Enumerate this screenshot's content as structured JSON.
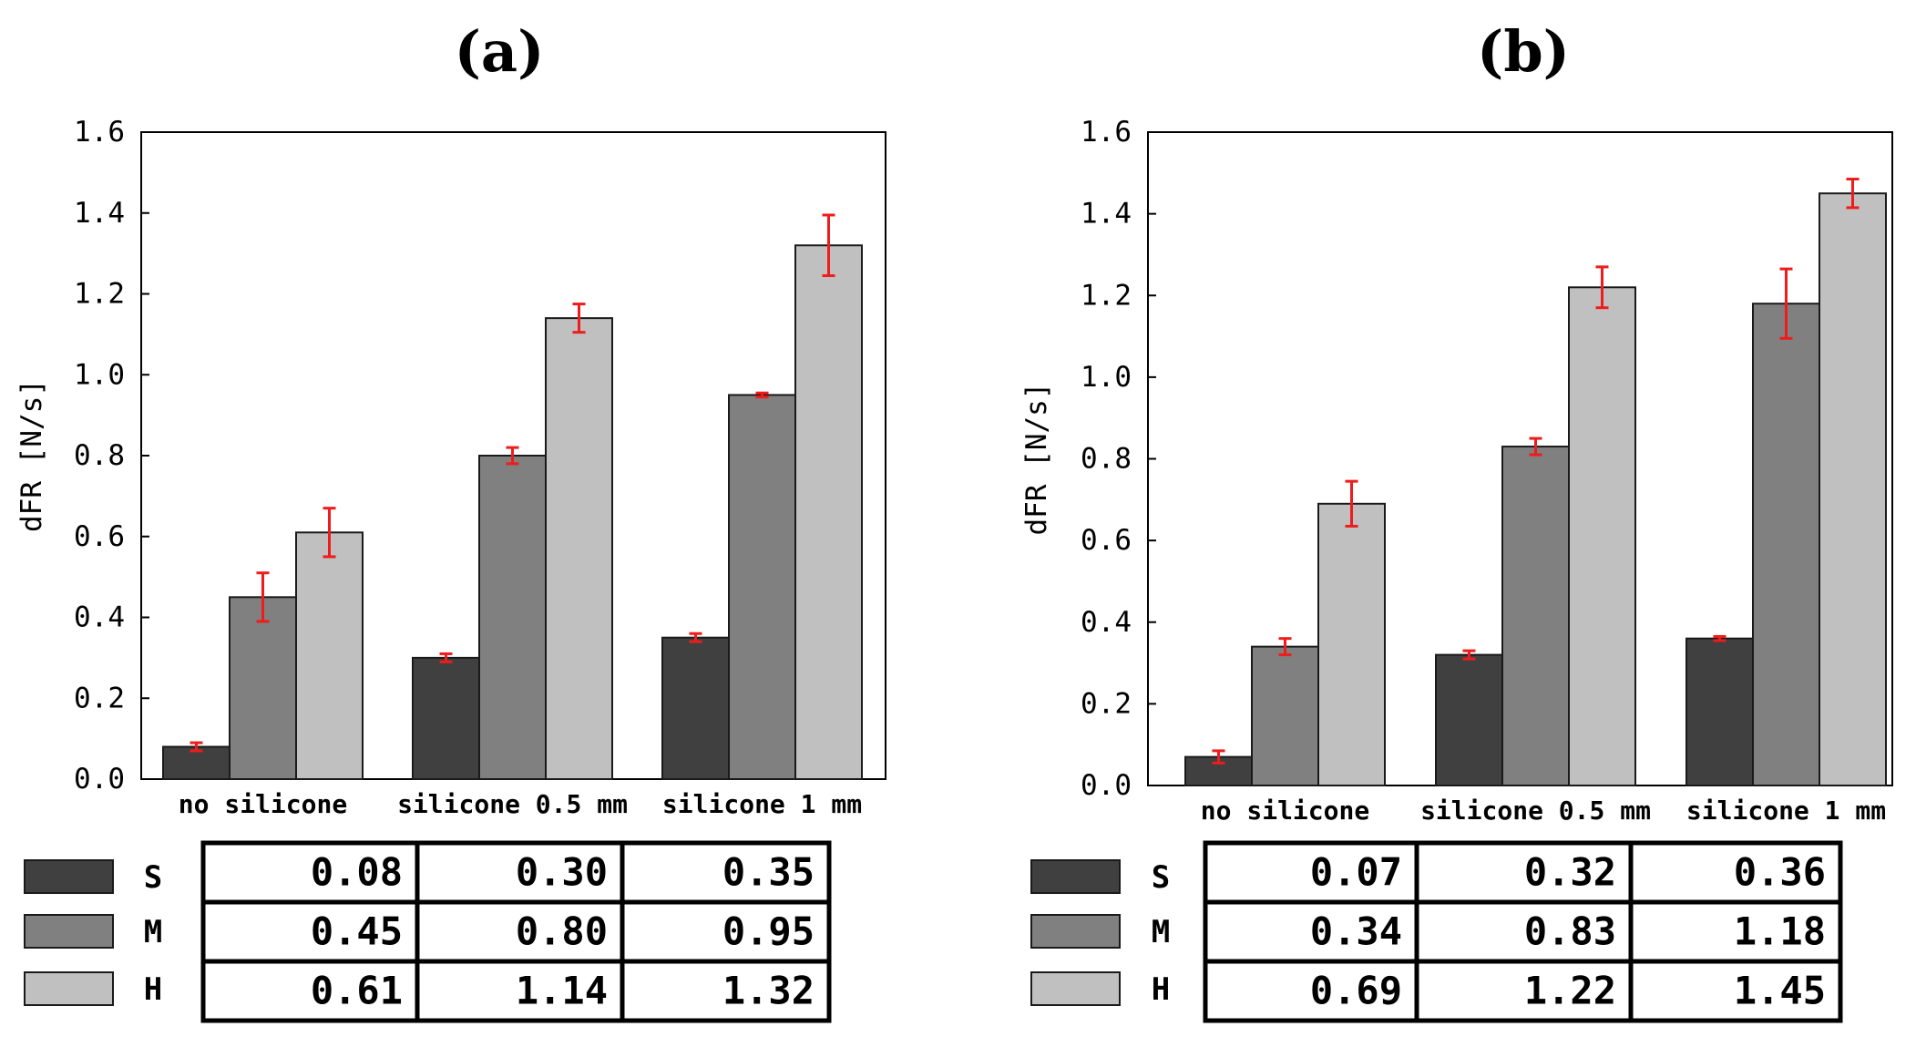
{
  "colors": {
    "S": "#404040",
    "M": "#808080",
    "H": "#c0c0c0",
    "error": "#ee1c1c",
    "frame": "#000000"
  },
  "chart_data": [
    {
      "type": "bar",
      "title": "(a)",
      "xlabel": "",
      "ylabel": "dFR [N/s]",
      "ylim": [
        0,
        1.6
      ],
      "yticks": [
        "0.0",
        "0.2",
        "0.4",
        "0.6",
        "0.8",
        "1.0",
        "1.2",
        "1.4",
        "1.6"
      ],
      "categories": [
        "no silicone",
        "silicone 0.5 mm",
        "silicone 1 mm"
      ],
      "series": [
        {
          "name": "S",
          "values": [
            0.08,
            0.3,
            0.35
          ],
          "errors": [
            0.01,
            0.01,
            0.01
          ]
        },
        {
          "name": "M",
          "values": [
            0.45,
            0.8,
            0.95
          ],
          "errors": [
            0.06,
            0.02,
            0.005
          ]
        },
        {
          "name": "H",
          "values": [
            0.61,
            1.14,
            1.32
          ],
          "errors": [
            0.06,
            0.035,
            0.075
          ]
        }
      ],
      "table": [
        [
          "0.08",
          "0.30",
          "0.35"
        ],
        [
          "0.45",
          "0.80",
          "0.95"
        ],
        [
          "0.61",
          "1.14",
          "1.32"
        ]
      ]
    },
    {
      "type": "bar",
      "title": "(b)",
      "xlabel": "",
      "ylabel": "dFR [N/s]",
      "ylim": [
        0,
        1.6
      ],
      "yticks": [
        "0.0",
        "0.2",
        "0.4",
        "0.6",
        "0.8",
        "1.0",
        "1.2",
        "1.4",
        "1.6"
      ],
      "categories": [
        "no silicone",
        "silicone 0.5 mm",
        "silicone 1 mm"
      ],
      "series": [
        {
          "name": "S",
          "values": [
            0.07,
            0.32,
            0.36
          ],
          "errors": [
            0.015,
            0.01,
            0.005
          ]
        },
        {
          "name": "M",
          "values": [
            0.34,
            0.83,
            1.18
          ],
          "errors": [
            0.02,
            0.02,
            0.085
          ]
        },
        {
          "name": "H",
          "values": [
            0.69,
            1.22,
            1.45
          ],
          "errors": [
            0.055,
            0.05,
            0.035
          ]
        }
      ],
      "table": [
        [
          "0.07",
          "0.32",
          "0.36"
        ],
        [
          "0.34",
          "0.83",
          "1.18"
        ],
        [
          "0.69",
          "1.22",
          "1.45"
        ]
      ]
    }
  ]
}
